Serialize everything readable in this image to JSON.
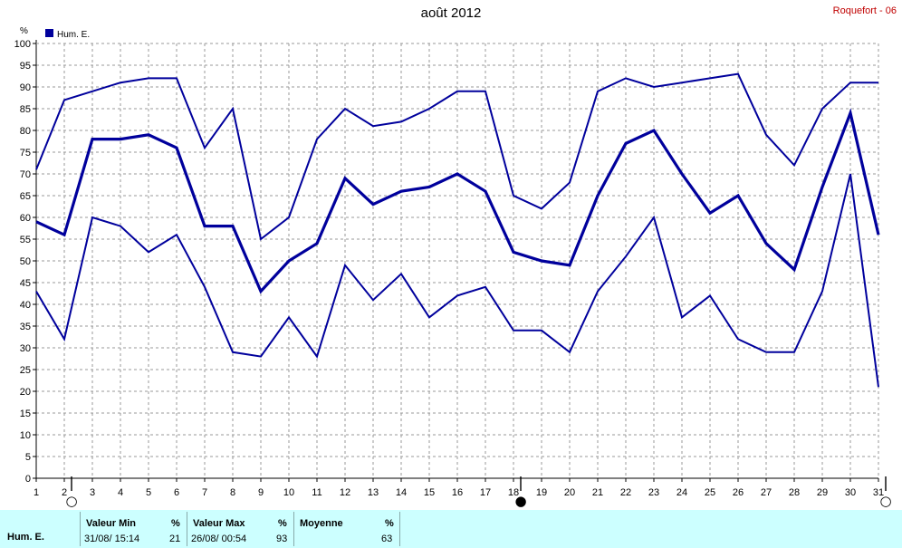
{
  "header": {
    "title": "août 2012",
    "station": "Roquefort - 06"
  },
  "chart_data": {
    "type": "line",
    "title": "août 2012",
    "ylabel": "%",
    "ylim": [
      0,
      100
    ],
    "yticks": [
      0,
      5,
      10,
      15,
      20,
      25,
      30,
      35,
      40,
      45,
      50,
      55,
      60,
      65,
      70,
      75,
      80,
      85,
      90,
      95,
      100
    ],
    "x": [
      1,
      2,
      3,
      4,
      5,
      6,
      7,
      8,
      9,
      10,
      11,
      12,
      13,
      14,
      15,
      16,
      17,
      18,
      19,
      20,
      21,
      22,
      23,
      24,
      25,
      26,
      27,
      28,
      29,
      30,
      31
    ],
    "grid": true,
    "legend": {
      "position": "top-left",
      "entries": [
        "Hum. E."
      ]
    },
    "series": [
      {
        "name": "max",
        "color": "#00009c",
        "values": [
          71,
          87,
          89,
          91,
          92,
          92,
          76,
          85,
          55,
          60,
          78,
          85,
          81,
          82,
          85,
          89,
          89,
          65,
          62,
          68,
          89,
          92,
          90,
          91,
          92,
          93,
          79,
          72,
          85,
          91,
          91
        ]
      },
      {
        "name": "Hum. E.",
        "color": "#00009c",
        "values": [
          59,
          56,
          78,
          78,
          79,
          76,
          58,
          58,
          43,
          50,
          54,
          69,
          63,
          66,
          67,
          70,
          66,
          52,
          50,
          49,
          65,
          77,
          80,
          70,
          61,
          65,
          54,
          48,
          67,
          84,
          56
        ]
      },
      {
        "name": "min",
        "color": "#00009c",
        "values": [
          43,
          32,
          60,
          58,
          52,
          56,
          44,
          29,
          28,
          37,
          28,
          49,
          41,
          47,
          37,
          42,
          44,
          34,
          34,
          29,
          43,
          51,
          60,
          37,
          42,
          32,
          29,
          29,
          43,
          70,
          21
        ]
      }
    ],
    "moon_phases": [
      {
        "day": 2,
        "symbol": "○"
      },
      {
        "day": 18,
        "symbol": "●"
      },
      {
        "day": 31,
        "symbol": "○"
      }
    ]
  },
  "footer": {
    "series_label": "Hum. E.",
    "min_label": "Valeur Min",
    "min_unit": "%",
    "min_time": "31/08/  15:14",
    "min_value": "21",
    "max_label": "Valeur Max",
    "max_unit": "%",
    "max_time": "26/08/  00:54",
    "max_value": "93",
    "avg_label": "Moyenne",
    "avg_unit": "%",
    "avg_value": "63"
  }
}
